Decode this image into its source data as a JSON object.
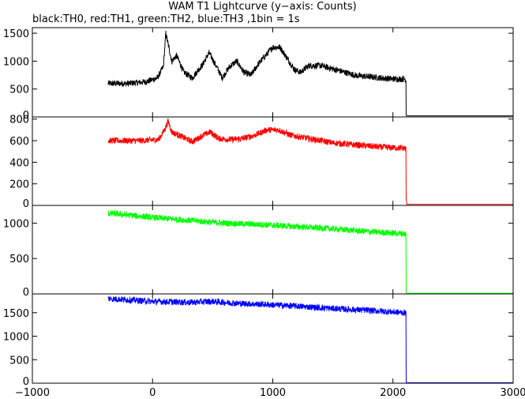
{
  "title": "WAM T1 Lightcurve (y−axis: Counts)",
  "subtitle": "black:TH0, red:TH1, green:TH2, blue:TH3 ,1bin = 1s",
  "chart_data": [
    {
      "type": "line",
      "series": [
        {
          "name": "TH0",
          "color": "#000000",
          "x": [
            -370,
            -200,
            -50,
            40,
            90,
            110,
            130,
            160,
            200,
            260,
            330,
            420,
            470,
            520,
            580,
            640,
            700,
            760,
            820,
            880,
            940,
            1000,
            1060,
            1120,
            1180,
            1230,
            1300,
            1400,
            1500,
            1600,
            1700,
            1800,
            1900,
            2000,
            2100,
            2108,
            2110,
            2115,
            2300,
            2600,
            3000
          ],
          "y": [
            600,
            600,
            630,
            700,
            900,
            1500,
            1300,
            1000,
            1100,
            800,
            700,
            950,
            1150,
            950,
            700,
            900,
            1000,
            800,
            750,
            950,
            1100,
            1250,
            1250,
            1050,
            850,
            800,
            920,
            920,
            860,
            800,
            740,
            720,
            700,
            680,
            680,
            650,
            30,
            20,
            20,
            20,
            20
          ]
        }
      ],
      "xlim": [
        -1000,
        3000
      ],
      "ylim": [
        0,
        1600
      ],
      "yticks": [
        "0",
        "500",
        "1000",
        "1500"
      ]
    },
    {
      "type": "line",
      "series": [
        {
          "name": "TH1",
          "color": "#ff0000",
          "x": [
            -370,
            -100,
            50,
            100,
            130,
            160,
            220,
            330,
            420,
            480,
            550,
            650,
            750,
            850,
            950,
            1050,
            1150,
            1300,
            1500,
            1700,
            1900,
            2100,
            2108,
            2110,
            2115,
            2400,
            3000
          ],
          "y": [
            600,
            600,
            610,
            700,
            780,
            680,
            650,
            590,
            650,
            680,
            620,
            610,
            620,
            650,
            700,
            700,
            650,
            620,
            580,
            560,
            540,
            530,
            520,
            70,
            10,
            10,
            10
          ]
        }
      ],
      "xlim": [
        -1000,
        3000
      ],
      "ylim": [
        0,
        820
      ],
      "yticks": [
        "0",
        "200",
        "400",
        "600",
        "800"
      ]
    },
    {
      "type": "line",
      "series": [
        {
          "name": "TH2",
          "color": "#00ff00",
          "x": [
            -370,
            -300,
            0,
            300,
            600,
            900,
            1200,
            1500,
            1800,
            2100,
            2108,
            2110,
            2115,
            2400,
            3000
          ],
          "y": [
            1140,
            1130,
            1080,
            1040,
            1000,
            980,
            950,
            920,
            880,
            850,
            840,
            20,
            10,
            10,
            10
          ]
        }
      ],
      "xlim": [
        -1000,
        3000
      ],
      "ylim": [
        0,
        1250
      ],
      "yticks": [
        "0",
        "500",
        "1000"
      ]
    },
    {
      "type": "line",
      "series": [
        {
          "name": "TH3",
          "color": "#0000ff",
          "x": [
            -370,
            -300,
            0,
            300,
            500,
            700,
            900,
            1200,
            1500,
            1800,
            2100,
            2108,
            2110,
            2115,
            2400,
            3000
          ],
          "y": [
            1800,
            1790,
            1740,
            1720,
            1740,
            1700,
            1680,
            1640,
            1590,
            1550,
            1500,
            1480,
            20,
            10,
            10,
            10
          ]
        }
      ],
      "xlim": [
        -1000,
        3000
      ],
      "ylim": [
        0,
        1900
      ],
      "xticks": [
        "−1000",
        "0",
        "1000",
        "2000",
        "3000"
      ],
      "yticks": [
        "0",
        "500",
        "1000",
        "1500"
      ]
    }
  ]
}
